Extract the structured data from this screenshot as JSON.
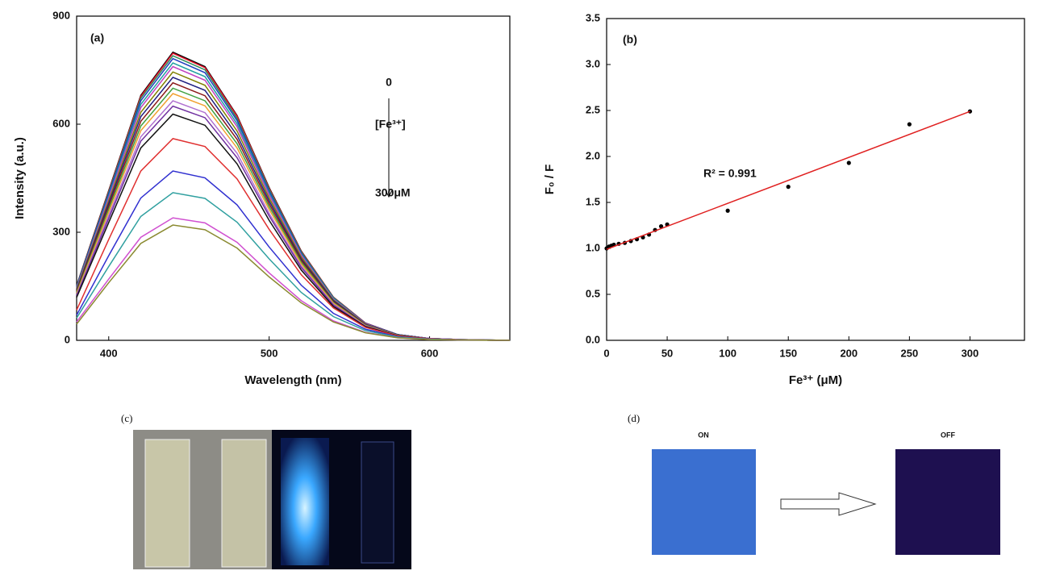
{
  "chart_data": [
    {
      "type": "line",
      "xlabel": "Wavelength (nm)",
      "ylabel": "Intensity (a.u.)",
      "annotations": [
        "(a)",
        "0",
        "[Fe³⁺]",
        "300μM"
      ],
      "xlim": [
        380,
        650
      ],
      "xticks": [
        400,
        500,
        600
      ],
      "ylim": [
        0,
        900
      ],
      "yticks": [
        0,
        300,
        600,
        900
      ],
      "x": [
        380,
        400,
        420,
        440,
        460,
        480,
        500,
        520,
        540,
        560,
        580,
        600,
        620,
        650
      ],
      "series": [
        {
          "color": "#000000",
          "values": [
            152,
            416,
            680,
            800,
            760,
            624,
            424,
            248,
            120,
            48,
            16,
            5,
            2,
            0
          ]
        },
        {
          "color": "#e8102a",
          "values": [
            151,
            414,
            677,
            797,
            757,
            622,
            422,
            247,
            120,
            48,
            16,
            5,
            2,
            0
          ]
        },
        {
          "color": "#2e8b57",
          "values": [
            150,
            411,
            672,
            790,
            751,
            616,
            419,
            245,
            119,
            47,
            16,
            5,
            2,
            0
          ]
        },
        {
          "color": "#1f3fbf",
          "values": [
            149,
            407,
            665,
            782,
            743,
            610,
            414,
            242,
            117,
            47,
            16,
            5,
            2,
            0
          ]
        },
        {
          "color": "#20a0a0",
          "values": [
            146,
            400,
            655,
            770,
            732,
            601,
            408,
            239,
            116,
            46,
            15,
            5,
            2,
            0
          ]
        },
        {
          "color": "#c040c0",
          "values": [
            144,
            395,
            646,
            760,
            722,
            593,
            403,
            236,
            114,
            46,
            15,
            5,
            2,
            0
          ]
        },
        {
          "color": "#808000",
          "values": [
            142,
            387,
            633,
            745,
            708,
            581,
            395,
            231,
            112,
            45,
            15,
            4,
            1,
            0
          ]
        },
        {
          "color": "#202080",
          "values": [
            139,
            380,
            621,
            730,
            694,
            569,
            387,
            226,
            110,
            44,
            15,
            4,
            1,
            0
          ]
        },
        {
          "color": "#8b1a1a",
          "values": [
            136,
            372,
            608,
            715,
            679,
            558,
            379,
            222,
            107,
            43,
            14,
            4,
            1,
            0
          ]
        },
        {
          "color": "#40a040",
          "values": [
            133,
            364,
            595,
            700,
            665,
            546,
            371,
            217,
            105,
            42,
            14,
            4,
            1,
            0
          ]
        },
        {
          "color": "#f0a030",
          "values": [
            130,
            356,
            582,
            685,
            651,
            534,
            363,
            212,
            103,
            41,
            14,
            4,
            1,
            0
          ]
        },
        {
          "color": "#b070d0",
          "values": [
            126,
            346,
            565,
            665,
            632,
            519,
            352,
            206,
            100,
            40,
            13,
            4,
            1,
            0
          ]
        },
        {
          "color": "#7030a0",
          "values": [
            124,
            338,
            553,
            650,
            618,
            507,
            345,
            202,
            98,
            39,
            13,
            4,
            1,
            0
          ]
        },
        {
          "color": "#111111",
          "values": [
            119,
            327,
            534,
            628,
            597,
            490,
            333,
            195,
            94,
            38,
            13,
            4,
            1,
            0
          ]
        },
        {
          "color": "#e03030",
          "values": [
            84,
            280,
            470,
            560,
            538,
            448,
            308,
            182,
            90,
            36,
            12,
            4,
            1,
            0
          ]
        },
        {
          "color": "#3030d0",
          "values": [
            70,
            235,
            395,
            470,
            451,
            376,
            259,
            153,
            75,
            31,
            10,
            3,
            1,
            0
          ]
        },
        {
          "color": "#30a0a0",
          "values": [
            62,
            205,
            344,
            410,
            394,
            328,
            226,
            133,
            66,
            27,
            9,
            3,
            1,
            0
          ]
        },
        {
          "color": "#d050d0",
          "values": [
            51,
            170,
            286,
            340,
            326,
            272,
            187,
            110,
            54,
            22,
            7,
            2,
            1,
            0
          ]
        },
        {
          "color": "#8a8a30",
          "values": [
            45,
            160,
            269,
            320,
            307,
            256,
            176,
            104,
            51,
            21,
            7,
            2,
            1,
            0
          ]
        }
      ]
    },
    {
      "type": "scatter",
      "xlabel": "Fe³⁺ (μM)",
      "ylabel": "F₀ / F",
      "annotations": [
        "(b)",
        "R² = 0.991"
      ],
      "xlim": [
        0,
        345
      ],
      "xticks": [
        0,
        50,
        100,
        150,
        200,
        250,
        300
      ],
      "ylim": [
        0,
        3.5
      ],
      "yticks": [
        {
          "value": 0,
          "label": "0.0"
        },
        0.5,
        {
          "value": 1,
          "label": "1.0"
        },
        1.5,
        {
          "value": 2,
          "label": "2.0"
        },
        2.5,
        {
          "value": 3,
          "label": "3.0"
        },
        3.5
      ],
      "series": [
        {
          "mode": "markers",
          "color": "#000000",
          "x": [
            0,
            2,
            4,
            6,
            10,
            15,
            20,
            25,
            30,
            35,
            40,
            45,
            50,
            100,
            150,
            200,
            250,
            300
          ],
          "values": [
            1.0,
            1.02,
            1.03,
            1.04,
            1.05,
            1.06,
            1.08,
            1.1,
            1.12,
            1.15,
            1.2,
            1.24,
            1.26,
            1.41,
            1.67,
            1.93,
            2.35,
            2.49
          ]
        },
        {
          "mode": "line",
          "color": "#e02020",
          "x": [
            0,
            300
          ],
          "values": [
            0.99,
            2.49
          ]
        }
      ]
    }
  ],
  "panels": {
    "c": "(c)",
    "d": "(d)",
    "on": "ON",
    "off": "OFF"
  }
}
